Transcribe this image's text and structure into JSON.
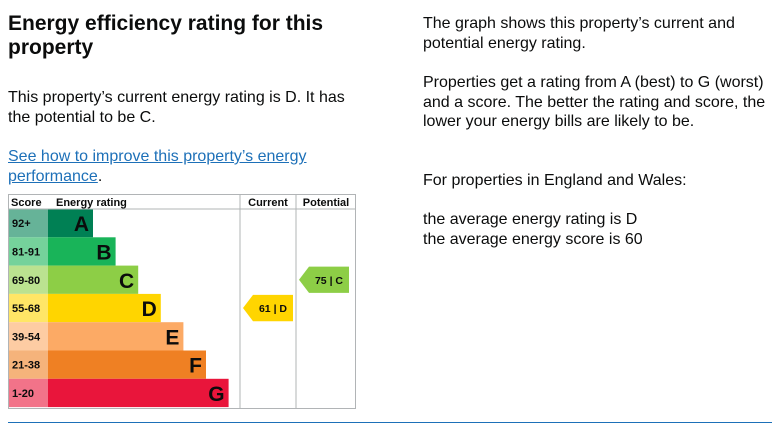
{
  "heading": "Energy efficiency rating for this property",
  "current_text": "This property’s current energy rating is D. It has the potential to be C.",
  "improve_link": "See how to improve this property’s energy performance",
  "improve_link_suffix": ".",
  "right": {
    "p1": "The graph shows this property’s current and potential energy rating.",
    "p2": "Properties get a rating from A (best) to G (worst) and a score. The better the rating and score, the lower your energy bills are likely to be.",
    "p3": "For properties in England and Wales:",
    "p4a": "the average energy rating is D",
    "p4b": "the average energy score is 60"
  },
  "chart_data": {
    "type": "bar",
    "headers": {
      "score": "Score",
      "rating": "Energy rating",
      "current": "Current",
      "potential": "Potential"
    },
    "bands": [
      {
        "score": "92+",
        "letter": "A",
        "color": "#008054",
        "score_bg": "#66b398"
      },
      {
        "score": "81-91",
        "letter": "B",
        "color": "#19b459",
        "score_bg": "#75d29b"
      },
      {
        "score": "69-80",
        "letter": "C",
        "color": "#8dce46",
        "score_bg": "#bbe290"
      },
      {
        "score": "55-68",
        "letter": "D",
        "color": "#ffd500",
        "score_bg": "#ffe666"
      },
      {
        "score": "39-54",
        "letter": "E",
        "color": "#fcaa65",
        "score_bg": "#fdcca3"
      },
      {
        "score": "21-38",
        "letter": "F",
        "color": "#ef8023",
        "score_bg": "#f5b37b"
      },
      {
        "score": "1-20",
        "letter": "G",
        "color": "#e9153b",
        "score_bg": "#f27389"
      }
    ],
    "current": {
      "score": 61,
      "band": "D",
      "label": "61 | D",
      "color": "#ffd500"
    },
    "potential": {
      "score": 75,
      "band": "C",
      "label": "75 | C",
      "color": "#8dce46"
    }
  }
}
